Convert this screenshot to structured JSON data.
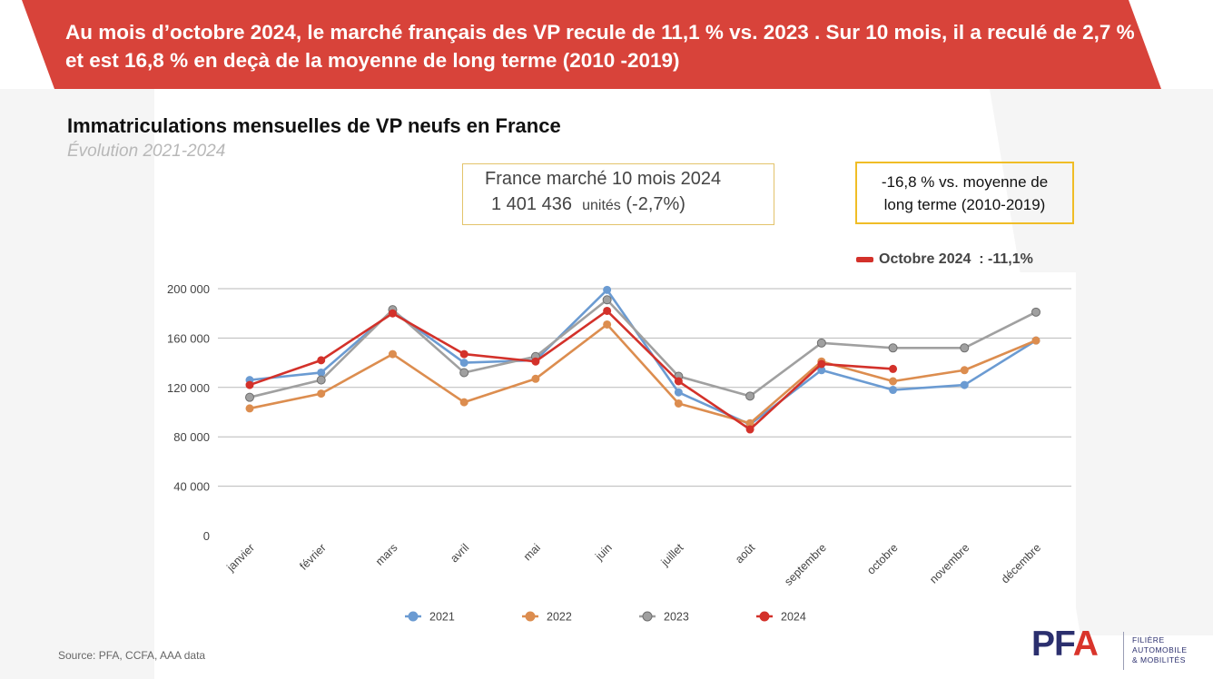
{
  "header": {
    "banner": "Au mois d’octobre 2024, le marché français des VP recule de 11,1 % vs. 2023 . Sur 10 mois, il a reculé de 2,7 % et est 16,8 % en deçà de la moyenne de long terme (2010 -2019)"
  },
  "chart_data": {
    "type": "line",
    "title": "Immatriculations mensuelles de VP neufs en France",
    "subtitle": "Évolution 2021-2024",
    "categories": [
      "janvier",
      "février",
      "mars",
      "avril",
      "mai",
      "juin",
      "juillet",
      "août",
      "septembre",
      "octobre",
      "novembre",
      "décembre"
    ],
    "ylim": [
      0,
      200000
    ],
    "yticks": [
      0,
      40000,
      80000,
      120000,
      160000,
      200000
    ],
    "ytick_labels": [
      "0",
      "40 000",
      "80 000",
      "120 000",
      "160 000",
      "200 000"
    ],
    "grid": true,
    "legend_position": "bottom",
    "series": [
      {
        "name": "2021",
        "color": "#6b9bd2",
        "values": [
          126000,
          132000,
          182000,
          140000,
          142000,
          199000,
          116000,
          90000,
          134000,
          118000,
          122000,
          158000
        ]
      },
      {
        "name": "2022",
        "color": "#dc8d4f",
        "values": [
          103000,
          115000,
          147000,
          108000,
          127000,
          171000,
          107000,
          91000,
          141000,
          125000,
          134000,
          158000
        ]
      },
      {
        "name": "2023",
        "color": "#a0a0a0",
        "values": [
          112000,
          126000,
          183000,
          132000,
          145000,
          191000,
          129000,
          113000,
          156000,
          152000,
          152000,
          181000
        ]
      },
      {
        "name": "2024",
        "color": "#d3312a",
        "values": [
          122000,
          142000,
          180000,
          147000,
          141000,
          182000,
          125000,
          86000,
          139000,
          135000,
          null,
          null
        ]
      }
    ]
  },
  "annotations": {
    "market_line1": "France marché 10 mois 2024",
    "market_value": "1 401 436",
    "market_unit": "unités",
    "market_change": "(-2,7%)",
    "lt_line1": "-16,8 % vs. moyenne de",
    "lt_line2": "long terme (2010-2019)",
    "october_label": "Octobre 2024",
    "october_value": "  : -11,1%"
  },
  "footer": {
    "source": "Source: PFA, CCFA, AAA data"
  },
  "logo": {
    "mark_p": "PF",
    "mark_a": "A",
    "line1": "FILIÈRE",
    "line2": "AUTOMOBILE",
    "line3": "& MOBILITÉS"
  },
  "colors": {
    "banner": "#d8433a",
    "october_accent": "#d3312a",
    "box_border_market": "#e3c36b",
    "box_border_lt": "#f0bd26",
    "logo_navy": "#2b2f6e"
  }
}
